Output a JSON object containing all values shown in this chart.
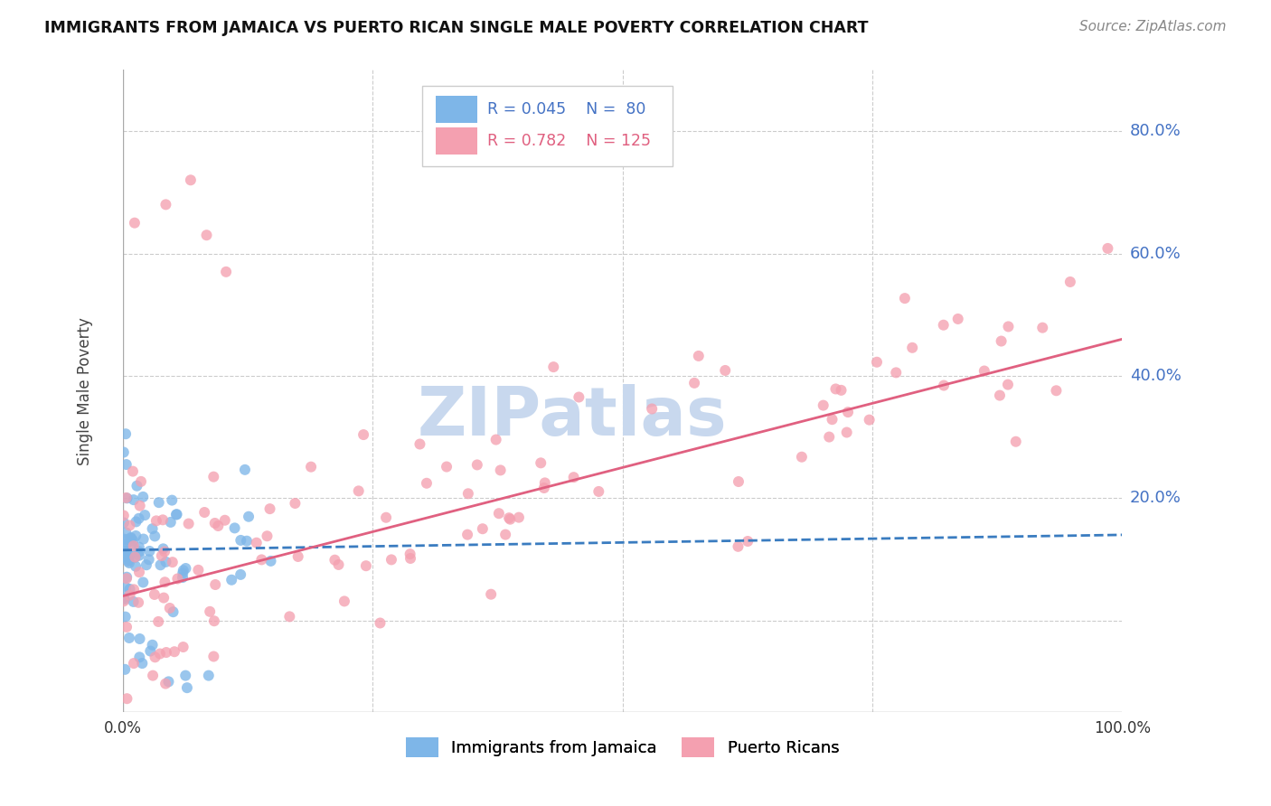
{
  "title": "IMMIGRANTS FROM JAMAICA VS PUERTO RICAN SINGLE MALE POVERTY CORRELATION CHART",
  "source": "Source: ZipAtlas.com",
  "ylabel": "Single Male Poverty",
  "legend_label1": "Immigrants from Jamaica",
  "legend_label2": "Puerto Ricans",
  "legend_r1": "R = 0.045",
  "legend_n1": "N =  80",
  "legend_r2": "R = 0.782",
  "legend_n2": "N = 125",
  "color_blue": "#7EB6E8",
  "color_pink": "#F4A0B0",
  "color_blue_line": "#3A7CC0",
  "color_pink_line": "#E06080",
  "color_blue_text": "#4472C4",
  "color_pink_text": "#E06080",
  "watermark_color": "#C8D8EE",
  "background_color": "#FFFFFF"
}
